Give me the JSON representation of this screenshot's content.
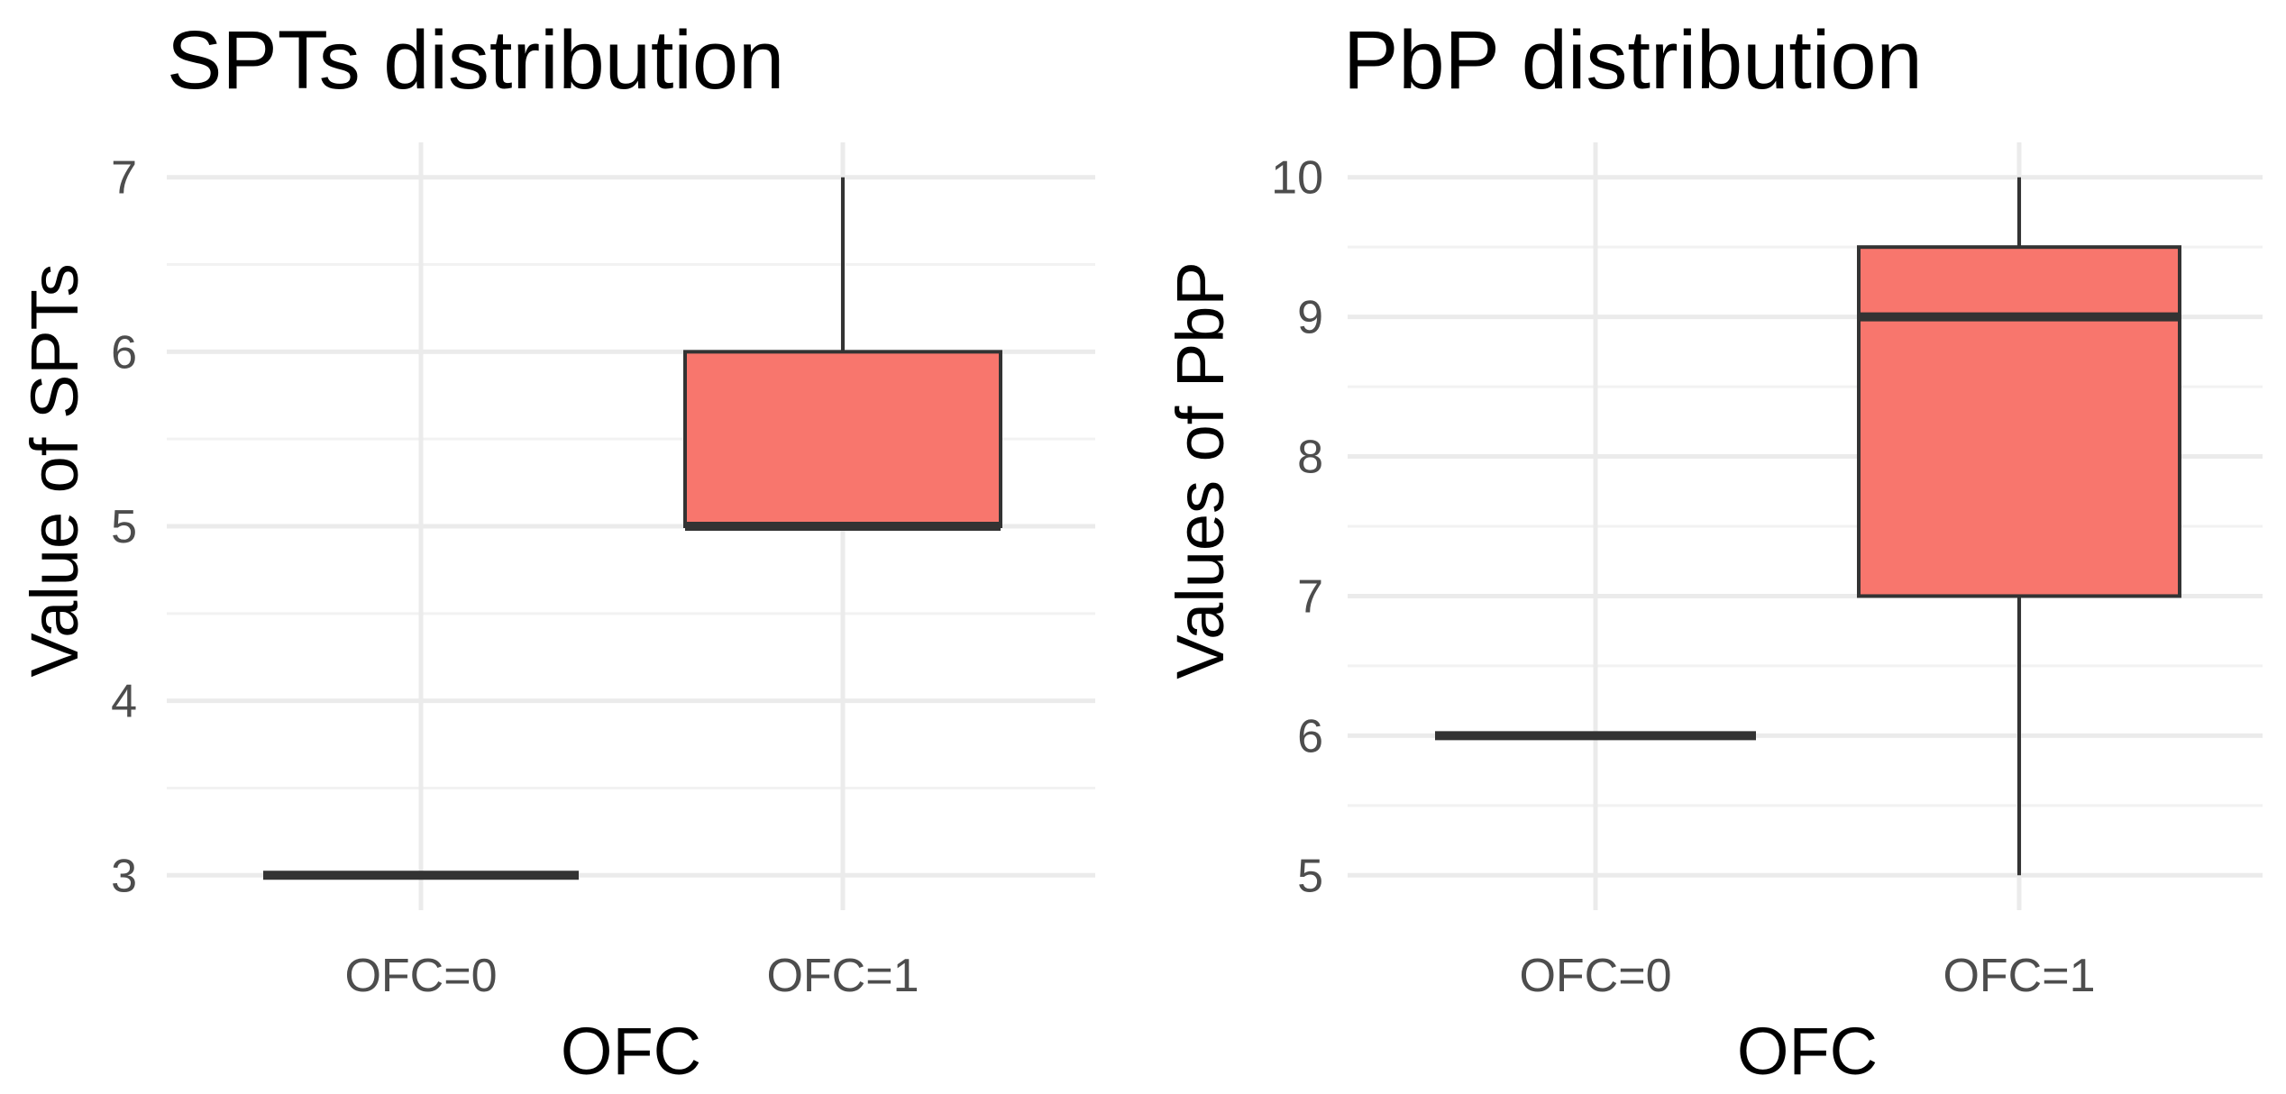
{
  "chart_data": [
    {
      "type": "boxplot",
      "title": "SPTs distribution",
      "xlabel": "OFC",
      "ylabel": "Value of SPTs",
      "categories": [
        "OFC=0",
        "OFC=1"
      ],
      "ylim": [
        2.8,
        7.2
      ],
      "yticks": [
        "3",
        "4",
        "5",
        "6",
        "7"
      ],
      "boxes": [
        {
          "category": "OFC=0",
          "min": 3,
          "q1": 3,
          "median": 3,
          "q3": 3,
          "max": 3
        },
        {
          "category": "OFC=1",
          "min": 5,
          "q1": 5,
          "median": 5,
          "q3": 6,
          "max": 7
        }
      ],
      "fill_color": "#F8766D",
      "line_color": "#333333",
      "grid": true
    },
    {
      "type": "boxplot",
      "title": "PbP distribution",
      "xlabel": "OFC",
      "ylabel": "Values of PbP",
      "categories": [
        "OFC=0",
        "OFC=1"
      ],
      "ylim": [
        4.75,
        10.25
      ],
      "yticks": [
        "5",
        "6",
        "7",
        "8",
        "9",
        "10"
      ],
      "boxes": [
        {
          "category": "OFC=0",
          "min": 6,
          "q1": 6,
          "median": 6,
          "q3": 6,
          "max": 6
        },
        {
          "category": "OFC=1",
          "min": 5,
          "q1": 7,
          "median": 9,
          "q3": 9.5,
          "max": 10
        }
      ],
      "fill_color": "#F8766D",
      "line_color": "#333333",
      "grid": true
    }
  ]
}
